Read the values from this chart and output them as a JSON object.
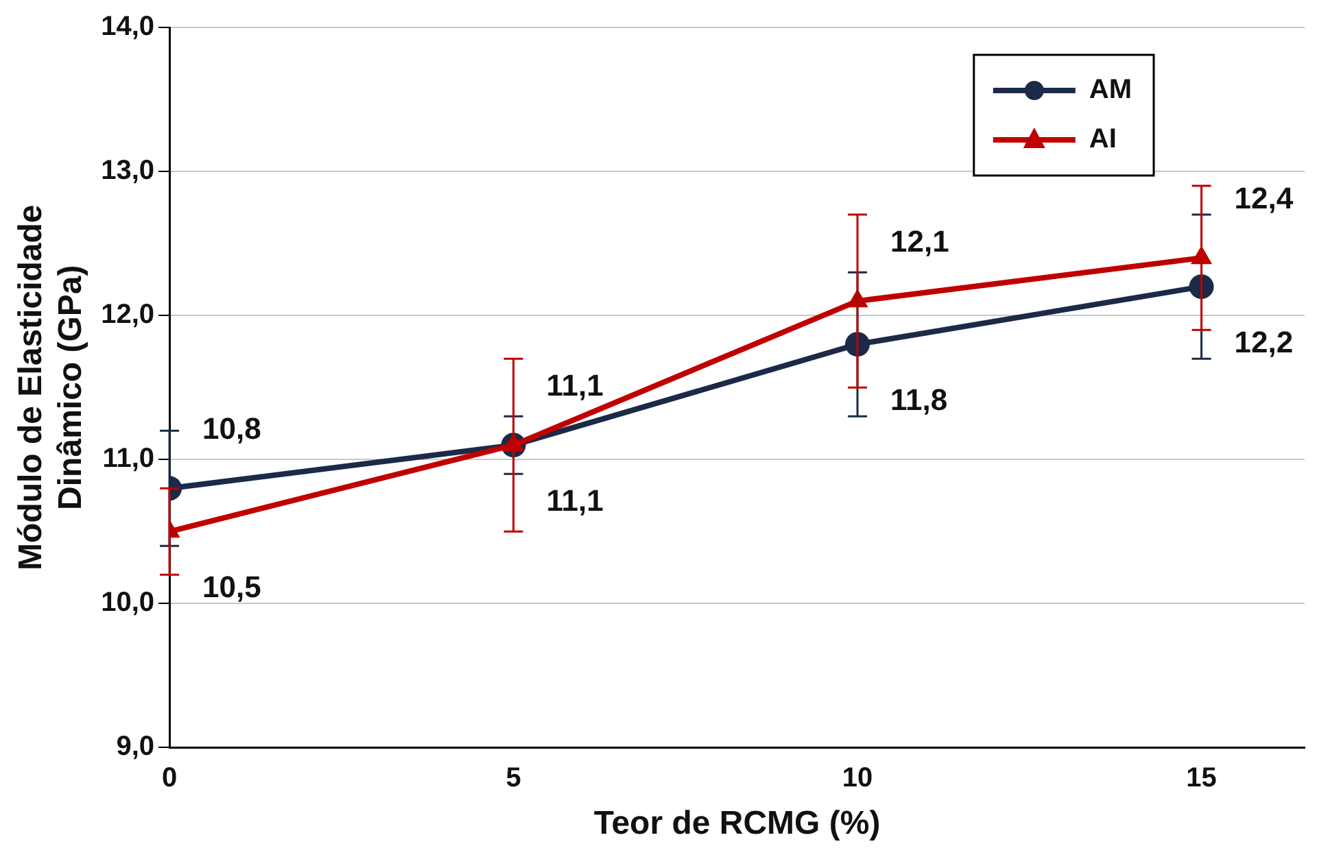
{
  "chart_data": {
    "type": "line",
    "xlabel": "Teor de RCMG (%)",
    "ylabel": "Módulo de Elasticidade Dinâmico (GPa)",
    "x": [
      0,
      5,
      10,
      15
    ],
    "xlim": [
      0,
      16.5
    ],
    "xticks": [
      0,
      5,
      10,
      15
    ],
    "ylim": [
      9,
      14
    ],
    "yticks": [
      {
        "value": 9,
        "label": "9,0"
      },
      {
        "value": 10,
        "label": "10,0"
      },
      {
        "value": 11,
        "label": "11,0"
      },
      {
        "value": 12,
        "label": "12,0"
      },
      {
        "value": 13,
        "label": "13,0"
      },
      {
        "value": 14,
        "label": "14,0"
      }
    ],
    "grid": "y",
    "legend": "top right",
    "series": [
      {
        "name": "AM",
        "color": "#1b2a47",
        "marker": "circle",
        "values": [
          10.8,
          11.1,
          11.8,
          12.2
        ],
        "errors": [
          0.4,
          0.2,
          0.5,
          0.5
        ],
        "value_labels": [
          "10,8",
          "11,1",
          "11,8",
          "12,2"
        ]
      },
      {
        "name": "AI",
        "color": "#c00000",
        "marker": "triangle",
        "values": [
          10.5,
          11.1,
          12.1,
          12.4
        ],
        "errors": [
          0.3,
          0.6,
          0.6,
          0.5
        ],
        "value_labels": [
          "10,5",
          "11,1",
          "12,1",
          "12,4"
        ]
      }
    ]
  }
}
